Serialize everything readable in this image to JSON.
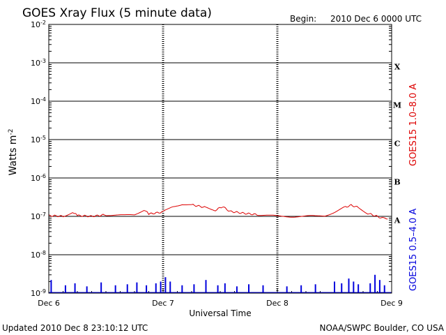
{
  "header": {
    "title": "GOES Xray Flux (5 minute data)",
    "begin_label": "Begin:",
    "begin_value": "2010 Dec 6 0000 UTC"
  },
  "footer": {
    "updated": "Updated 2010 Dec  8 23:10:12 UTC",
    "credit": "NOAA/SWPC Boulder, CO USA"
  },
  "chart_data": {
    "type": "line",
    "title": "GOES Xray Flux (5 minute data)",
    "xlabel": "Universal Time",
    "ylabel_base": "Watts m",
    "ylabel_exp": "-2",
    "yscale": "log",
    "ylim": [
      1e-09,
      0.01
    ],
    "xlim": [
      "2010-12-06 00:00",
      "2010-12-09 00:00"
    ],
    "x_ticks": [
      "Dec 6",
      "Dec 7",
      "Dec 8",
      "Dec 9"
    ],
    "y_ticks": [
      {
        "base": "10",
        "exp": "-2"
      },
      {
        "base": "10",
        "exp": "-3"
      },
      {
        "base": "10",
        "exp": "-4"
      },
      {
        "base": "10",
        "exp": "-5"
      },
      {
        "base": "10",
        "exp": "-6"
      },
      {
        "base": "10",
        "exp": "-7"
      },
      {
        "base": "10",
        "exp": "-8"
      },
      {
        "base": "10",
        "exp": "-9"
      }
    ],
    "flare_classes": [
      "X",
      "M",
      "C",
      "B",
      "A"
    ],
    "grid": "horizontal lines at each decade, dashed verticals at day boundaries",
    "series": [
      {
        "name": "GOES15 1.0–8.0 A",
        "color": "#dd0000",
        "points": [
          [
            "2010-12-06 00:00",
            1.05e-07
          ],
          [
            "2010-12-06 03:00",
            1e-07
          ],
          [
            "2010-12-06 05:00",
            1.3e-07
          ],
          [
            "2010-12-06 06:00",
            1.05e-07
          ],
          [
            "2010-12-06 09:00",
            1e-07
          ],
          [
            "2010-12-06 12:00",
            1.1e-07
          ],
          [
            "2010-12-06 16:00",
            1.05e-07
          ],
          [
            "2010-12-06 18:00",
            1.1e-07
          ],
          [
            "2010-12-06 20:00",
            1.5e-07
          ],
          [
            "2010-12-06 21:00",
            1.15e-07
          ],
          [
            "2010-12-07 00:00",
            1.3e-07
          ],
          [
            "2010-12-07 02:00",
            1.8e-07
          ],
          [
            "2010-12-07 04:00",
            2.1e-07
          ],
          [
            "2010-12-07 06:00",
            2e-07
          ],
          [
            "2010-12-07 09:00",
            1.7e-07
          ],
          [
            "2010-12-07 11:00",
            1.45e-07
          ],
          [
            "2010-12-07 12:30",
            1.8e-07
          ],
          [
            "2010-12-07 14:00",
            1.35e-07
          ],
          [
            "2010-12-07 17:00",
            1.2e-07
          ],
          [
            "2010-12-07 20:00",
            1.1e-07
          ],
          [
            "2010-12-08 00:00",
            1e-07
          ],
          [
            "2010-12-08 04:00",
            1e-07
          ],
          [
            "2010-12-08 08:00",
            1e-07
          ],
          [
            "2010-12-08 10:00",
            1.05e-07
          ],
          [
            "2010-12-08 12:00",
            1.3e-07
          ],
          [
            "2010-12-08 14:00",
            1.7e-07
          ],
          [
            "2010-12-08 15:30",
            1.95e-07
          ],
          [
            "2010-12-08 17:00",
            1.7e-07
          ],
          [
            "2010-12-08 19:00",
            1.2e-07
          ],
          [
            "2010-12-08 22:00",
            9e-08
          ],
          [
            "2010-12-08 23:10",
            8.5e-08
          ]
        ]
      },
      {
        "name": "GOES15 0.5–4.0 A",
        "color": "#0000dd",
        "baseline": 1e-09,
        "spikes": [
          [
            "2010-12-06 00:30",
            2.2e-09
          ],
          [
            "2010-12-06 03:30",
            1.6e-09
          ],
          [
            "2010-12-06 05:30",
            1.8e-09
          ],
          [
            "2010-12-06 08:00",
            1.5e-09
          ],
          [
            "2010-12-06 11:00",
            1.9e-09
          ],
          [
            "2010-12-06 14:00",
            1.6e-09
          ],
          [
            "2010-12-06 16:30",
            1.7e-09
          ],
          [
            "2010-12-06 18:30",
            1.9e-09
          ],
          [
            "2010-12-06 20:30",
            1.6e-09
          ],
          [
            "2010-12-06 22:30",
            1.8e-09
          ],
          [
            "2010-12-06 23:30",
            2e-09
          ],
          [
            "2010-12-07 00:30",
            2.6e-09
          ],
          [
            "2010-12-07 01:30",
            2e-09
          ],
          [
            "2010-12-07 04:00",
            1.6e-09
          ],
          [
            "2010-12-07 06:30",
            1.7e-09
          ],
          [
            "2010-12-07 09:00",
            2.2e-09
          ],
          [
            "2010-12-07 11:30",
            1.6e-09
          ],
          [
            "2010-12-07 13:00",
            1.8e-09
          ],
          [
            "2010-12-07 15:30",
            1.5e-09
          ],
          [
            "2010-12-07 18:00",
            1.7e-09
          ],
          [
            "2010-12-07 21:00",
            1.6e-09
          ],
          [
            "2010-12-08 02:00",
            1.5e-09
          ],
          [
            "2010-12-08 05:00",
            1.6e-09
          ],
          [
            "2010-12-08 08:00",
            1.7e-09
          ],
          [
            "2010-12-08 12:00",
            2e-09
          ],
          [
            "2010-12-08 13:30",
            1.8e-09
          ],
          [
            "2010-12-08 15:00",
            2.4e-09
          ],
          [
            "2010-12-08 16:00",
            2e-09
          ],
          [
            "2010-12-08 17:00",
            1.7e-09
          ],
          [
            "2010-12-08 19:30",
            1.8e-09
          ],
          [
            "2010-12-08 20:30",
            3e-09
          ],
          [
            "2010-12-08 21:30",
            2.2e-09
          ],
          [
            "2010-12-08 22:30",
            1.6e-09
          ]
        ]
      }
    ]
  }
}
